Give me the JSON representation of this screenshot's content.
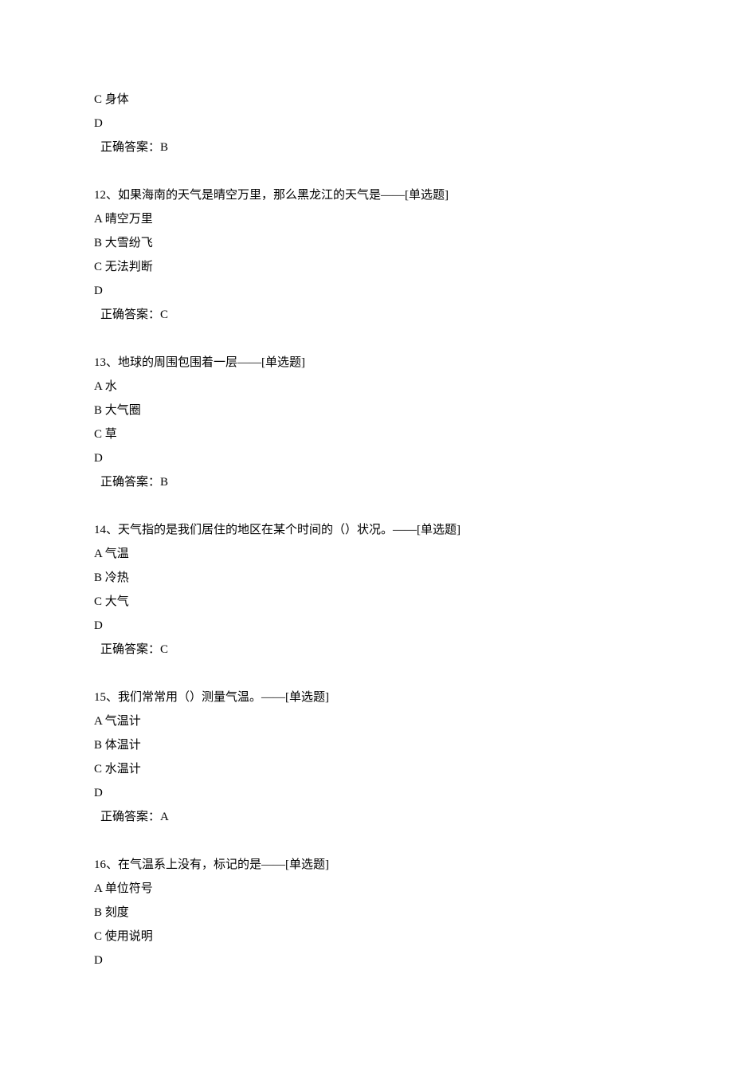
{
  "leading": {
    "option_c": "C 身体",
    "option_d": "D",
    "answer_label": "正确答案：B"
  },
  "questions": [
    {
      "stem": "12、如果海南的天气是晴空万里，那么黑龙江的天气是——[单选题]",
      "option_a": "A 晴空万里",
      "option_b": "B 大雪纷飞",
      "option_c": "C 无法判断",
      "option_d": "D",
      "answer_label": "正确答案：C"
    },
    {
      "stem": "13、地球的周围包围着一层——[单选题]",
      "option_a": "A 水",
      "option_b": "B 大气圈",
      "option_c": "C 草",
      "option_d": "D",
      "answer_label": "正确答案：B"
    },
    {
      "stem": "14、天气指的是我们居住的地区在某个时间的（）状况。——[单选题]",
      "option_a": "A 气温",
      "option_b": "B 冷热",
      "option_c": "C 大气",
      "option_d": "D",
      "answer_label": "正确答案：C"
    },
    {
      "stem": "15、我们常常用（）测量气温。——[单选题]",
      "option_a": "A 气温计",
      "option_b": "B 体温计",
      "option_c": "C 水温计",
      "option_d": "D",
      "answer_label": "正确答案：A"
    },
    {
      "stem": "16、在气温系上没有，标记的是——[单选题]",
      "option_a": "A 单位符号",
      "option_b": "B 刻度",
      "option_c": "C 使用说明",
      "option_d": "D",
      "answer_label": null
    }
  ]
}
